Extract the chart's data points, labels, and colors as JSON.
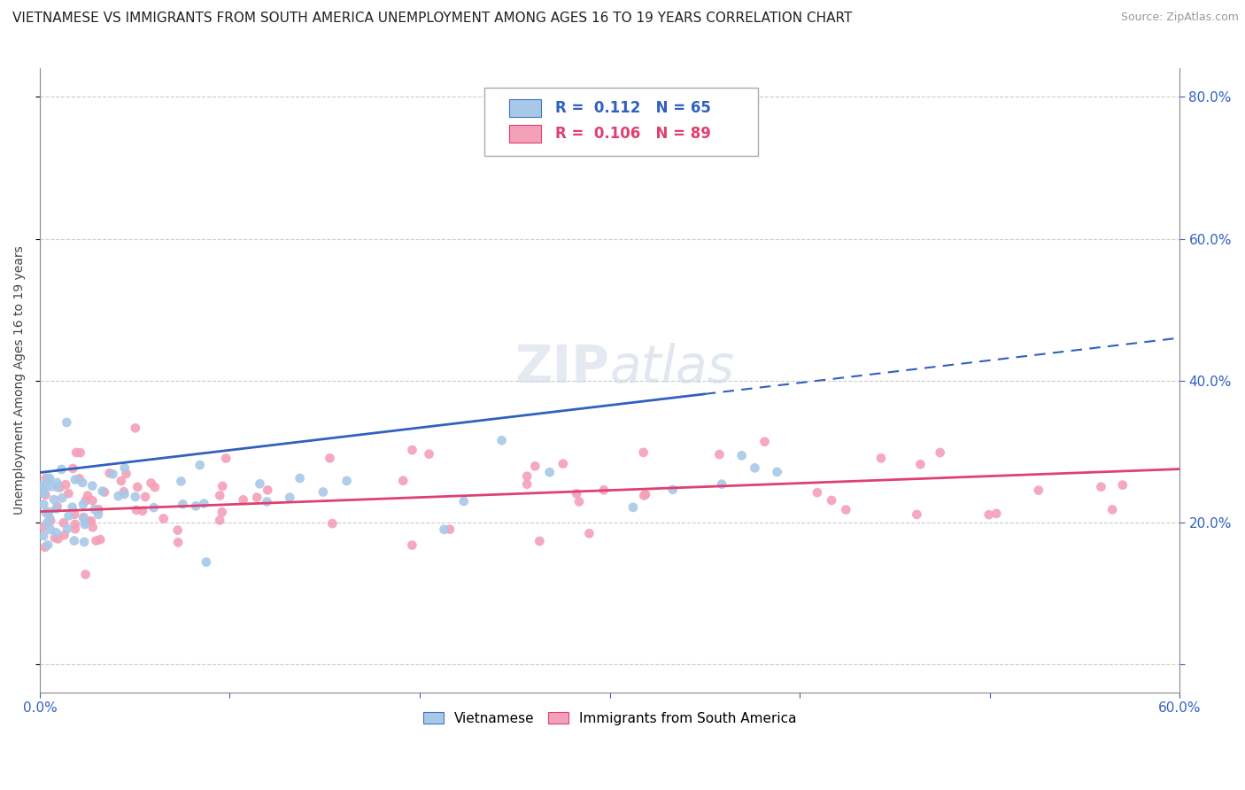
{
  "title": "VIETNAMESE VS IMMIGRANTS FROM SOUTH AMERICA UNEMPLOYMENT AMONG AGES 16 TO 19 YEARS CORRELATION CHART",
  "source": "Source: ZipAtlas.com",
  "ylabel": "Unemployment Among Ages 16 to 19 years",
  "xlim": [
    0.0,
    0.6
  ],
  "ylim": [
    -0.04,
    0.84
  ],
  "legend1_label": "Vietnamese",
  "legend2_label": "Immigrants from South America",
  "r1": "0.112",
  "n1": "65",
  "r2": "0.106",
  "n2": "89",
  "color1": "#a8c8e8",
  "color2": "#f4a0b8",
  "line_color1": "#3060c0",
  "line_color2": "#e04070",
  "watermark_top": "ZIP",
  "watermark_bot": "atlas",
  "background_color": "#ffffff",
  "title_fontsize": 11,
  "blue_line_solid_end": 0.35,
  "blue_line_x0": 0.0,
  "blue_line_y0": 0.27,
  "blue_line_x1": 0.6,
  "blue_line_y1": 0.46,
  "pink_line_x0": 0.0,
  "pink_line_y0": 0.215,
  "pink_line_x1": 0.6,
  "pink_line_y1": 0.275
}
